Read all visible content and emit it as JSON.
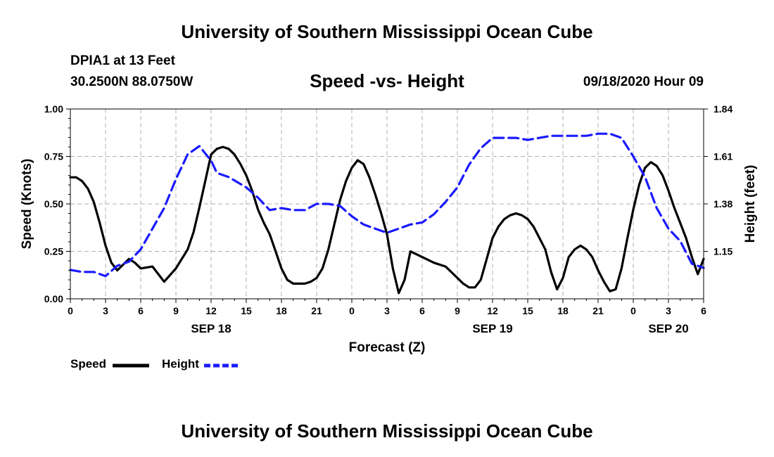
{
  "header": {
    "top_title": "University of Southern Mississippi Ocean Cube",
    "station": "DPIA1 at 13 Feet",
    "coordinates": "30.2500N 88.0750W",
    "datetime": "09/18/2020 Hour 09",
    "bottom_title": "University of Southern Mississippi Ocean Cube"
  },
  "chart_data": {
    "type": "line",
    "title": "Speed -vs- Height",
    "xlabel": "Forecast (Z)",
    "ylabel": "Speed (Knots)",
    "y2label": "Height (feet)",
    "xlim": [
      0,
      54
    ],
    "ylim": [
      0,
      1.0
    ],
    "y2lim": [
      0.92,
      1.84
    ],
    "grid": true,
    "colors": {
      "speed": "#000000",
      "height": "#1a1aff",
      "grid": "#b0b0b0"
    },
    "x_ticks": [
      0,
      3,
      6,
      9,
      12,
      15,
      18,
      21,
      24,
      27,
      30,
      33,
      36,
      39,
      42,
      45,
      48,
      51,
      54
    ],
    "x_tick_labels": [
      "0",
      "3",
      "6",
      "9",
      "12",
      "15",
      "18",
      "21",
      "0",
      "3",
      "6",
      "9",
      "12",
      "15",
      "18",
      "21",
      "0",
      "3",
      "6"
    ],
    "date_labels": [
      {
        "x": 12,
        "label": "SEP 18"
      },
      {
        "x": 36,
        "label": "SEP 19"
      },
      {
        "x": 51,
        "label": "SEP 20"
      }
    ],
    "y_ticks": [
      0,
      0.25,
      0.5,
      0.75,
      1.0
    ],
    "y_tick_labels": [
      "0.00",
      "0.25",
      "0.50",
      "0.75",
      "1.00"
    ],
    "y2_ticks": [
      1.15,
      1.38,
      1.61,
      1.84
    ],
    "y2_tick_labels": [
      "1.15",
      "1.38",
      "1.61",
      "1.84"
    ],
    "legend": [
      {
        "name": "Speed",
        "style": "solid",
        "color": "#000000"
      },
      {
        "name": "Height",
        "style": "dashed",
        "color": "#1a1aff"
      }
    ],
    "series": [
      {
        "name": "Speed",
        "axis": "left",
        "points": [
          [
            0,
            0.64
          ],
          [
            0.5,
            0.64
          ],
          [
            1,
            0.62
          ],
          [
            1.5,
            0.58
          ],
          [
            2,
            0.51
          ],
          [
            2.5,
            0.4
          ],
          [
            3,
            0.28
          ],
          [
            3.5,
            0.19
          ],
          [
            4,
            0.15
          ],
          [
            4.5,
            0.18
          ],
          [
            5,
            0.21
          ],
          [
            5.5,
            0.19
          ],
          [
            6,
            0.16
          ],
          [
            7,
            0.17
          ],
          [
            7.5,
            0.13
          ],
          [
            8,
            0.09
          ],
          [
            9,
            0.16
          ],
          [
            10,
            0.26
          ],
          [
            10.5,
            0.35
          ],
          [
            11,
            0.48
          ],
          [
            11.5,
            0.62
          ],
          [
            12,
            0.76
          ],
          [
            12.5,
            0.79
          ],
          [
            13,
            0.8
          ],
          [
            13.5,
            0.79
          ],
          [
            14,
            0.76
          ],
          [
            14.5,
            0.71
          ],
          [
            15,
            0.65
          ],
          [
            15.5,
            0.57
          ],
          [
            16,
            0.47
          ],
          [
            16.5,
            0.4
          ],
          [
            17,
            0.34
          ],
          [
            17.5,
            0.25
          ],
          [
            18,
            0.16
          ],
          [
            18.5,
            0.1
          ],
          [
            19,
            0.08
          ],
          [
            20,
            0.08
          ],
          [
            20.5,
            0.09
          ],
          [
            21,
            0.11
          ],
          [
            21.5,
            0.16
          ],
          [
            22,
            0.26
          ],
          [
            22.5,
            0.39
          ],
          [
            23,
            0.52
          ],
          [
            23.5,
            0.62
          ],
          [
            24,
            0.69
          ],
          [
            24.5,
            0.73
          ],
          [
            25,
            0.71
          ],
          [
            25.5,
            0.64
          ],
          [
            26,
            0.55
          ],
          [
            26.5,
            0.45
          ],
          [
            27,
            0.34
          ],
          [
            27.5,
            0.16
          ],
          [
            28,
            0.03
          ],
          [
            28.5,
            0.1
          ],
          [
            29,
            0.25
          ],
          [
            30,
            0.22
          ],
          [
            31,
            0.19
          ],
          [
            32,
            0.17
          ],
          [
            33,
            0.11
          ],
          [
            33.5,
            0.08
          ],
          [
            34,
            0.06
          ],
          [
            34.5,
            0.06
          ],
          [
            35,
            0.1
          ],
          [
            35.5,
            0.21
          ],
          [
            36,
            0.32
          ],
          [
            36.5,
            0.38
          ],
          [
            37,
            0.42
          ],
          [
            37.5,
            0.44
          ],
          [
            38,
            0.45
          ],
          [
            38.5,
            0.44
          ],
          [
            39,
            0.42
          ],
          [
            39.5,
            0.38
          ],
          [
            40,
            0.32
          ],
          [
            40.5,
            0.26
          ],
          [
            41,
            0.14
          ],
          [
            41.5,
            0.05
          ],
          [
            42,
            0.11
          ],
          [
            42.5,
            0.22
          ],
          [
            43,
            0.26
          ],
          [
            43.5,
            0.28
          ],
          [
            44,
            0.26
          ],
          [
            44.5,
            0.22
          ],
          [
            45,
            0.15
          ],
          [
            45.5,
            0.09
          ],
          [
            46,
            0.04
          ],
          [
            46.5,
            0.05
          ],
          [
            47,
            0.16
          ],
          [
            47.5,
            0.32
          ],
          [
            48,
            0.47
          ],
          [
            48.5,
            0.6
          ],
          [
            49,
            0.69
          ],
          [
            49.5,
            0.72
          ],
          [
            50,
            0.7
          ],
          [
            50.5,
            0.65
          ],
          [
            51,
            0.57
          ],
          [
            51.5,
            0.48
          ],
          [
            52,
            0.4
          ],
          [
            52.5,
            0.32
          ],
          [
            53,
            0.22
          ],
          [
            53.5,
            0.13
          ],
          [
            54,
            0.21
          ]
        ]
      },
      {
        "name": "Height",
        "axis": "right",
        "points": [
          [
            0,
            1.06
          ],
          [
            1,
            1.05
          ],
          [
            2,
            1.05
          ],
          [
            3,
            1.03
          ],
          [
            4,
            1.08
          ],
          [
            5,
            1.1
          ],
          [
            6,
            1.16
          ],
          [
            7,
            1.26
          ],
          [
            8,
            1.36
          ],
          [
            9,
            1.5
          ],
          [
            10,
            1.62
          ],
          [
            11,
            1.66
          ],
          [
            12,
            1.59
          ],
          [
            12.5,
            1.53
          ],
          [
            13.5,
            1.51
          ],
          [
            15,
            1.46
          ],
          [
            16,
            1.41
          ],
          [
            17,
            1.35
          ],
          [
            18,
            1.36
          ],
          [
            19,
            1.35
          ],
          [
            20,
            1.35
          ],
          [
            21,
            1.38
          ],
          [
            22,
            1.38
          ],
          [
            23,
            1.37
          ],
          [
            24,
            1.32
          ],
          [
            25,
            1.28
          ],
          [
            26,
            1.26
          ],
          [
            27,
            1.24
          ],
          [
            28,
            1.26
          ],
          [
            29,
            1.28
          ],
          [
            30,
            1.29
          ],
          [
            31,
            1.33
          ],
          [
            32,
            1.39
          ],
          [
            33,
            1.46
          ],
          [
            34,
            1.57
          ],
          [
            35,
            1.65
          ],
          [
            36,
            1.7
          ],
          [
            37,
            1.7
          ],
          [
            38,
            1.7
          ],
          [
            39,
            1.69
          ],
          [
            40,
            1.7
          ],
          [
            41,
            1.71
          ],
          [
            42,
            1.71
          ],
          [
            43,
            1.71
          ],
          [
            44,
            1.71
          ],
          [
            45,
            1.72
          ],
          [
            46,
            1.72
          ],
          [
            47,
            1.7
          ],
          [
            48,
            1.61
          ],
          [
            49,
            1.51
          ],
          [
            50,
            1.36
          ],
          [
            51,
            1.26
          ],
          [
            52,
            1.2
          ],
          [
            53,
            1.09
          ],
          [
            54,
            1.07
          ]
        ]
      }
    ]
  }
}
